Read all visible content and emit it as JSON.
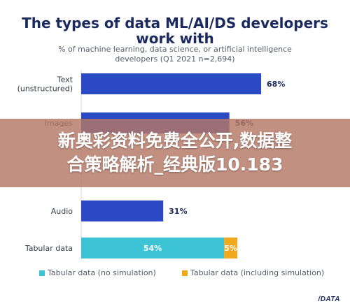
{
  "header": {
    "title_line1": "The types of data ML/AI/DS developers",
    "title_line2": "work with",
    "subtitle_line1": "% of machine learning, data science, or artificial intelligence",
    "subtitle_line2": "developers (Q1 2021 n=2,694)"
  },
  "overlay": {
    "line1": "新奥彩资料免费全公开,数据整",
    "line2": "合策略解析_经典版10.183"
  },
  "legend": {
    "item1": "Tabular data (no simulation)",
    "item2": "Tabular data (including simulation)"
  },
  "brand": "/DATA",
  "colors": {
    "primary": "#2b49c4",
    "tabular_no_sim": "#3cc4d4",
    "tabular_sim": "#f2a81d",
    "title": "#1b2a5e",
    "overlay": "#b47864"
  },
  "chart_data": {
    "type": "bar",
    "orientation": "horizontal",
    "xlim": [
      0,
      100
    ],
    "grid": false,
    "legend_position": "bottom",
    "categories": [
      "Text (unstructured)",
      "Images",
      "",
      "Audio",
      "Tabular data"
    ],
    "category_lines": [
      [
        "Text",
        "(unstructured)"
      ],
      [
        "Images"
      ],
      [
        ""
      ],
      [
        "Audio"
      ],
      [
        "Tabular data"
      ]
    ],
    "values": [
      68,
      56,
      null,
      31,
      null
    ],
    "value_labels": [
      "68%",
      "56%",
      "",
      "31%",
      ""
    ],
    "stacked": {
      "category": "Tabular data",
      "series": [
        {
          "name": "Tabular data (no simulation)",
          "value": 54,
          "label": "54%"
        },
        {
          "name": "Tabular data (including simulation)",
          "value": 5,
          "label": "5%"
        }
      ]
    }
  }
}
